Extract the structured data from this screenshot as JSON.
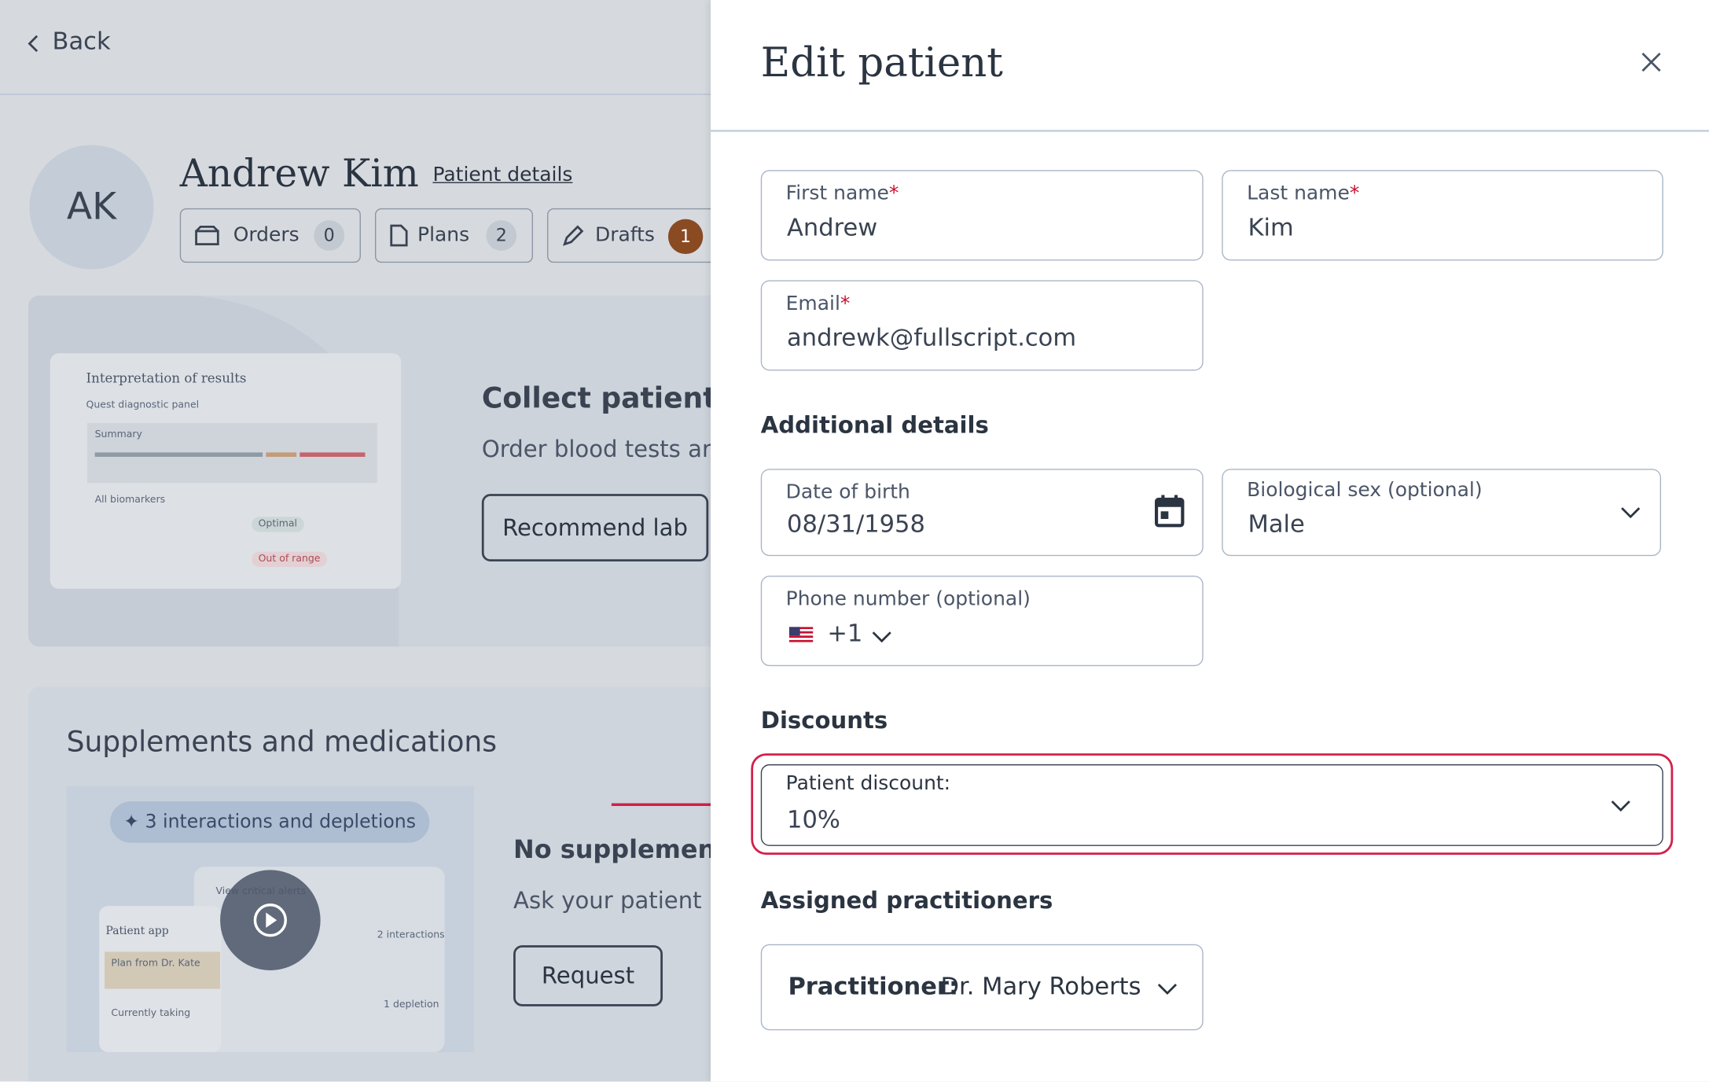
{
  "back": "Back",
  "patient": {
    "initials": "AK",
    "name": "Andrew Kim",
    "details_link": "Patient details",
    "tabs": [
      {
        "label": "Orders",
        "count": "0"
      },
      {
        "label": "Plans",
        "count": "2"
      },
      {
        "label": "Drafts",
        "count": "1"
      }
    ]
  },
  "lab_card": {
    "preview": {
      "title": "Interpretation of results",
      "panel": "Quest diagnostic panel",
      "summary": "Summary",
      "all": "All biomarkers",
      "optimal": "Optimal",
      "out_of_range": "Out of range"
    },
    "heading": "Collect patient d",
    "text": "Order blood tests ar",
    "button": "Recommend lab"
  },
  "supplements": {
    "title": "Supplements and medications",
    "pill": "3 interactions and depletions",
    "preview": {
      "alerts": "View critical alerts",
      "app": "Patient app",
      "plan": "Plan from Dr. Kate",
      "taking": "Currently taking",
      "interactions": "2 interactions",
      "depletion": "1 depletion"
    },
    "heading": "No supplements",
    "text": "Ask your patient",
    "button": "Request"
  },
  "panel": {
    "title": "Edit patient",
    "fields": {
      "first_name": {
        "label": "First name",
        "marker": "*",
        "value": "Andrew"
      },
      "last_name": {
        "label": "Last name",
        "marker": "*",
        "value": "Kim"
      },
      "email": {
        "label": "Email",
        "marker": "*",
        "value": "andrewk@fullscript.com"
      }
    },
    "additional": {
      "title": "Additional details",
      "dob": {
        "label": "Date of birth",
        "value": "08/31/1958"
      },
      "sex": {
        "label": "Biological sex (optional)",
        "value": "Male"
      },
      "phone": {
        "label": "Phone number (optional)",
        "value": "+1"
      }
    },
    "discounts": {
      "title": "Discounts",
      "label": "Patient discount:",
      "value": "10%"
    },
    "practitioners": {
      "title": "Assigned practitioners",
      "label": "Practitioner:",
      "value": "Dr. Mary Roberts"
    }
  }
}
